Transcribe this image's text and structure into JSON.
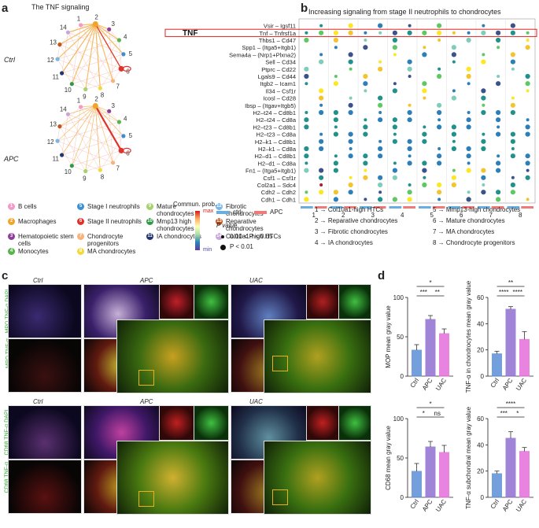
{
  "panels": {
    "a": "a",
    "b": "b",
    "c": "c",
    "d": "d"
  },
  "panel_a": {
    "title": "The TNF signaling",
    "groups": [
      {
        "label": "Ctrl"
      },
      {
        "label": "APC"
      }
    ],
    "node_numbers": [
      "1",
      "2",
      "3",
      "4",
      "5",
      "6",
      "7",
      "8",
      "9",
      "10",
      "11",
      "12",
      "13",
      "14"
    ],
    "legend": [
      {
        "num": "1",
        "label": "B cells",
        "color": "#f29ac8"
      },
      {
        "num": "2",
        "label": "Macrophages",
        "color": "#f0a42a"
      },
      {
        "num": "3",
        "label": "Hematopoietic stem cells",
        "color": "#8e3f9a"
      },
      {
        "num": "4",
        "label": "Monocytes",
        "color": "#57b34a"
      },
      {
        "num": "5",
        "label": "Stage I neutrophils",
        "color": "#3d8fd1"
      },
      {
        "num": "6",
        "label": "Stage II neutrophils",
        "color": "#e0322c"
      },
      {
        "num": "7",
        "label": "Chondrocyte progenitors",
        "color": "#f7b37a"
      },
      {
        "num": "8",
        "label": "MA chondrocytes",
        "color": "#f1da3a"
      },
      {
        "num": "9",
        "label": "Mature chondrocytes",
        "color": "#a3d36a"
      },
      {
        "num": "10",
        "label": "Mmp13 high chondrocytes",
        "color": "#2e9a48"
      },
      {
        "num": "11",
        "label": "IA chondrocytes",
        "color": "#21356f"
      },
      {
        "num": "12",
        "label": "Fibrotic chondrocytes",
        "color": "#79b7e8"
      },
      {
        "num": "13",
        "label": "Reparative chondrocytes",
        "color": "#c0561e"
      },
      {
        "num": "14",
        "label": "Col10a1-high HTCs",
        "color": "#c9a7d8"
      }
    ]
  },
  "panel_b": {
    "title": "Increasing signaling from stage II neutrophils to chondrocytes",
    "rows": [
      "Vsir – Igsf11",
      "Tnf – Tnfrsf1a",
      "Thbs1 – Cd47",
      "Spp1 – (Itga5+Itgb1)",
      "Sema4a – (Nrp1+Plxna2)",
      "Sell – Cd34",
      "Ptprc – Cd22",
      "Lgals9 – Cd44",
      "Itgb2 – Icam1",
      "Il34 – Csf1r",
      "Icosl – Cd28",
      "Ibsp – (Itgav+Itgb5)",
      "H2–t24 – Cd8b1",
      "H2–t24 – Cd8a",
      "H2–t23 – Cd8b1",
      "H2–t23 – Cd8a",
      "H2–k1 – Cd8b1",
      "H2–k1 – Cd8a",
      "H2–d1 – Cd8b1",
      "H2–d1 – Cd8a",
      "Fn1 – (Itga5+Itgb1)",
      "Csf1 – Csf1r",
      "Col2a1 – Sdc4",
      "Cdh2 – Cdh2",
      "Cdh1 – Cdh1"
    ],
    "tnf_label": "TNF",
    "x_groups": [
      "1",
      "2",
      "3",
      "4",
      "5",
      "6",
      "7",
      "8"
    ],
    "colorbar": {
      "title": "Commun. prob.",
      "max": "max",
      "min": "min"
    },
    "group_legend": [
      {
        "label": "ctrl",
        "color": "#6aaee0"
      },
      {
        "label": "APC",
        "color": "#f07a78"
      }
    ],
    "pvalue": {
      "title": "P value",
      "small": "0.01 < P < 0.05",
      "big": "P < 0.01"
    },
    "key": [
      "1 → Col10a1-high HTCs",
      "2 → Reparative chondrocytes",
      "3 → Fibrotic chondrocytes",
      "4 → IA chondrocytes",
      "5 → Mmp13-high chondrocytes",
      "6 → Mature chondrocytes",
      "7 → MA chondrocytes",
      "8 → Chondrocyte progenitors"
    ]
  },
  "panel_c": {
    "top_headers": [
      "Ctrl",
      "APC",
      "UAC"
    ],
    "bottom_headers": [
      "Ctrl",
      "APC",
      "UAC"
    ],
    "side_labels_top": [
      "MPO TNF-α DAPI",
      "MPO TNF-α"
    ],
    "side_labels_bottom": [
      "CD68 TNF-α DAPI",
      "CD68 TNF-α"
    ]
  },
  "panel_d": {
    "charts": [
      {
        "ylabel": "MOP mean gray value",
        "categories": [
          "Ctrl",
          "APC",
          "UAC"
        ],
        "values": [
          33,
          72,
          54
        ],
        "errors": [
          7,
          5,
          6
        ],
        "ylim": [
          0,
          100
        ],
        "ticks": [
          "0",
          "50",
          "100"
        ],
        "colors": [
          "#5b8fd6",
          "#8f6fd1",
          "#e46fdb"
        ],
        "sig": [
          {
            "text": "***",
            "a": 0,
            "b": 1,
            "level": 0
          },
          {
            "text": "**",
            "a": 1,
            "b": 2,
            "level": 0
          },
          {
            "text": "*",
            "a": 0,
            "b": 2,
            "level": 1
          }
        ]
      },
      {
        "ylabel": "TNF-α in chondrocytes mean gray value",
        "categories": [
          "Ctrl",
          "APC",
          "UAC"
        ],
        "values": [
          17,
          51,
          28
        ],
        "errors": [
          2,
          2,
          6
        ],
        "ylim": [
          0,
          60
        ],
        "ticks": [
          "0",
          "20",
          "40",
          "60"
        ],
        "colors": [
          "#5b8fd6",
          "#8f6fd1",
          "#e46fdb"
        ],
        "sig": [
          {
            "text": "****",
            "a": 0,
            "b": 1,
            "level": 0
          },
          {
            "text": "****",
            "a": 1,
            "b": 2,
            "level": 0
          },
          {
            "text": "**",
            "a": 0,
            "b": 2,
            "level": 1
          }
        ]
      },
      {
        "ylabel": "CD68 mean gray value",
        "categories": [
          "Ctrl",
          "APC",
          "UAC"
        ],
        "values": [
          33,
          64,
          57
        ],
        "errors": [
          10,
          7,
          9
        ],
        "ylim": [
          0,
          100
        ],
        "ticks": [
          "0",
          "50",
          "100"
        ],
        "colors": [
          "#5b8fd6",
          "#8f6fd1",
          "#e46fdb"
        ],
        "sig": [
          {
            "text": "*",
            "a": 0,
            "b": 1,
            "level": 0
          },
          {
            "text": "ns",
            "a": 1,
            "b": 2,
            "level": 0
          },
          {
            "text": "*",
            "a": 0,
            "b": 2,
            "level": 1
          }
        ]
      },
      {
        "ylabel": "TNF-α subchondral mean gray value",
        "categories": [
          "Ctrl",
          "APC",
          "UAC"
        ],
        "values": [
          18,
          45,
          35
        ],
        "errors": [
          2,
          5,
          3
        ],
        "ylim": [
          0,
          60
        ],
        "ticks": [
          "0",
          "20",
          "40",
          "60"
        ],
        "colors": [
          "#5b8fd6",
          "#8f6fd1",
          "#e46fdb"
        ],
        "sig": [
          {
            "text": "***",
            "a": 0,
            "b": 1,
            "level": 0
          },
          {
            "text": "*",
            "a": 1,
            "b": 2,
            "level": 0
          },
          {
            "text": "****",
            "a": 0,
            "b": 2,
            "level": 1
          }
        ]
      }
    ]
  }
}
